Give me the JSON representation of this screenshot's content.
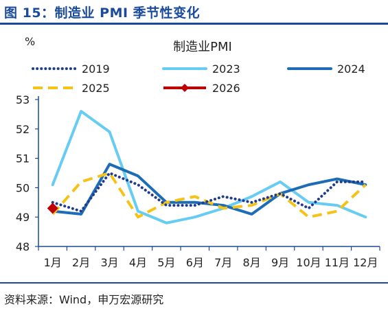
{
  "figure": {
    "title": "图 15：制造业 PMI 季节性变化",
    "source": "资料来源：Wind，申万宏源研究"
  },
  "chart_data": {
    "type": "line",
    "title": "制造业PMI",
    "ylabel": "%",
    "xlabel": "",
    "categories": [
      "1月",
      "2月",
      "3月",
      "4月",
      "5月",
      "6月",
      "7月",
      "8月",
      "9月",
      "10月",
      "11月",
      "12月"
    ],
    "ylim": [
      48,
      53
    ],
    "yticks": [
      48,
      49,
      50,
      51,
      52,
      53
    ],
    "grid": false,
    "legend_position": "top",
    "series": [
      {
        "name": "2019",
        "color": "#1f3d8c",
        "style": "dotted",
        "values": [
          49.5,
          49.2,
          50.5,
          50.1,
          49.4,
          49.4,
          49.7,
          49.5,
          49.8,
          49.3,
          50.2,
          50.2
        ]
      },
      {
        "name": "2023",
        "color": "#66ccf2",
        "style": "solid",
        "values": [
          50.1,
          52.6,
          51.9,
          49.2,
          48.8,
          49.0,
          49.3,
          49.7,
          50.2,
          49.5,
          49.4,
          49.0
        ]
      },
      {
        "name": "2024",
        "color": "#1c6db5",
        "style": "solid",
        "values": [
          49.2,
          49.1,
          50.8,
          50.4,
          49.5,
          49.5,
          49.4,
          49.1,
          49.8,
          50.1,
          50.3,
          50.1
        ]
      },
      {
        "name": "2025",
        "color": "#f5c218",
        "style": "dashed",
        "values": [
          49.1,
          50.2,
          50.5,
          49.0,
          49.5,
          49.7,
          49.3,
          49.4,
          49.8,
          49.0,
          49.2,
          50.1
        ]
      },
      {
        "name": "2026",
        "color": "#c00000",
        "style": "marker",
        "values": [
          49.3,
          null,
          null,
          null,
          null,
          null,
          null,
          null,
          null,
          null,
          null,
          null
        ]
      }
    ]
  }
}
